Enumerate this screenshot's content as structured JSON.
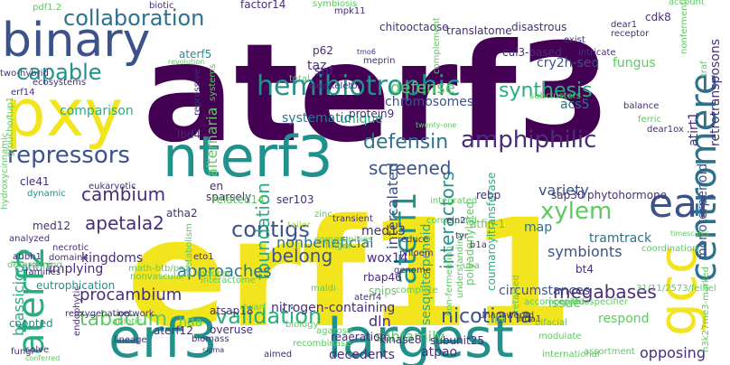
{
  "palette": {
    "dark_purple": "#440154",
    "purple": "#472d7b",
    "indigo": "#3b528b",
    "blue": "#2c728e",
    "teal": "#21918c",
    "green_teal": "#28ae80",
    "green": "#5ec962",
    "lime": "#addc30",
    "yellow": "#f2e51d"
  },
  "words": [
    {
      "text": "aterf3",
      "color": "#440154"
    },
    {
      "text": "erf11",
      "color": "#f2e51d"
    },
    {
      "text": "pxy",
      "color": "#f2e51d"
    },
    {
      "text": "binary",
      "color": "#3b528b"
    },
    {
      "text": "nterf3",
      "color": "#21918c"
    },
    {
      "text": "erf3",
      "color": "#21918c"
    },
    {
      "text": "largest",
      "color": "#21918c"
    },
    {
      "text": "gcc",
      "color": "#f2e51d"
    },
    {
      "text": "centromere",
      "color": "#2c728e"
    },
    {
      "text": "aterf2",
      "color": "#28ae80"
    },
    {
      "text": "aterf1",
      "color": "#21918c"
    },
    {
      "text": "ear",
      "color": "#3b528b"
    },
    {
      "text": "hemibiotrophic",
      "color": "#21918c"
    },
    {
      "text": "collaboration",
      "color": "#2c728e"
    },
    {
      "text": "capable",
      "color": "#21918c"
    },
    {
      "text": "repressors",
      "color": "#3b528b"
    },
    {
      "text": "defensin",
      "color": "#2c728e"
    },
    {
      "text": "amphiphilic",
      "color": "#472d7b"
    },
    {
      "text": "validation",
      "color": "#28ae80"
    },
    {
      "text": "tabacum",
      "color": "#5ec962"
    },
    {
      "text": "nicotiana",
      "color": "#3b528b"
    },
    {
      "text": "contigs",
      "color": "#3b528b"
    },
    {
      "text": "xylem",
      "color": "#5ec962"
    },
    {
      "text": "megabases",
      "color": "#472d7b"
    },
    {
      "text": "foundation",
      "color": "#28ae80"
    },
    {
      "text": "intercalated",
      "color": "#3b528b"
    },
    {
      "text": "interactors",
      "color": "#21918c"
    },
    {
      "text": "brassicicola",
      "color": "#28ae80"
    },
    {
      "text": "synthesis",
      "color": "#28ae80"
    },
    {
      "text": "screened",
      "color": "#3b528b"
    },
    {
      "text": "cambium",
      "color": "#472d7b"
    },
    {
      "text": "apetala2",
      "color": "#472d7b"
    },
    {
      "text": "procambium",
      "color": "#472d7b"
    },
    {
      "text": "alternaria",
      "color": "#5ec962"
    },
    {
      "text": "defense",
      "color": "#5ec962"
    },
    {
      "text": "chromosomes",
      "color": "#3b528b"
    },
    {
      "text": "belong",
      "color": "#3b528b"
    },
    {
      "text": "nonbeneficial",
      "color": "#2c728e"
    },
    {
      "text": "approaches",
      "color": "#2c728e"
    },
    {
      "text": "variety",
      "color": "#3b528b"
    },
    {
      "text": "symbionts",
      "color": "#3b528b"
    },
    {
      "text": "circumstances",
      "color": "#3b528b"
    },
    {
      "text": "nitrogen-containing",
      "color": "#472d7b"
    },
    {
      "text": "sesquiterpenoid",
      "color": "#28ae80"
    },
    {
      "text": "subfamily",
      "color": "#5ec962"
    },
    {
      "text": "monoterpenoid",
      "color": "#3b528b"
    },
    {
      "text": "cry2h-seq",
      "color": "#3b528b"
    },
    {
      "text": "kingdoms",
      "color": "#472d7b"
    },
    {
      "text": "fungus",
      "color": "#5ec962"
    },
    {
      "text": "atpao",
      "color": "#472d7b"
    },
    {
      "text": "decedents",
      "color": "#472d7b"
    },
    {
      "text": "opposing",
      "color": "#472d7b"
    },
    {
      "text": "coopted",
      "color": "#21918c"
    },
    {
      "text": "acs5",
      "color": "#2c728e"
    },
    {
      "text": "unique",
      "color": "#28ae80"
    },
    {
      "text": "systematic",
      "color": "#2c728e"
    },
    {
      "text": "comparison",
      "color": "#28ae80"
    },
    {
      "text": "implying",
      "color": "#472d7b"
    },
    {
      "text": "eutrophication",
      "color": "#21918c"
    },
    {
      "text": "atsap18",
      "color": "#472d7b"
    },
    {
      "text": "reaeration",
      "color": "#472d7b"
    },
    {
      "text": "med13",
      "color": "#472d7b"
    },
    {
      "text": "wox14",
      "color": "#472d7b"
    },
    {
      "text": "hda",
      "color": "#5ec962"
    },
    {
      "text": "issue",
      "color": "#5ec962"
    },
    {
      "text": "respond",
      "color": "#5ec962"
    },
    {
      "text": "tramtrack",
      "color": "#2c728e"
    },
    {
      "text": "med12",
      "color": "#472d7b"
    },
    {
      "text": "atha2",
      "color": "#472d7b"
    },
    {
      "text": "cle41",
      "color": "#472d7b"
    },
    {
      "text": "dln",
      "color": "#472d7b"
    },
    {
      "text": "snips",
      "color": "#5ec962"
    },
    {
      "text": "rbap46",
      "color": "#472d7b"
    },
    {
      "text": "map",
      "color": "#2c728e"
    },
    {
      "text": "bt4",
      "color": "#472d7b"
    },
    {
      "text": "rebp",
      "color": "#472d7b"
    },
    {
      "text": "sap30",
      "color": "#472d7b"
    },
    {
      "text": "phytohormone",
      "color": "#472d7b"
    },
    {
      "text": "atitr1",
      "color": "#21918c"
    },
    {
      "text": "overuse",
      "color": "#472d7b"
    },
    {
      "text": "aterf12",
      "color": "#472d7b"
    },
    {
      "text": "kinase8",
      "color": "#472d7b"
    },
    {
      "text": "subunit25",
      "color": "#472d7b"
    },
    {
      "text": "atfin-1",
      "color": "#5ec962"
    },
    {
      "text": "polyadenylated",
      "color": "#5ec962"
    },
    {
      "text": "coumaroyltransferase",
      "color": "#28ae80"
    },
    {
      "text": "transient",
      "color": "#472d7b"
    },
    {
      "text": "sparsely",
      "color": "#472d7b"
    },
    {
      "text": "en",
      "color": "#472d7b"
    },
    {
      "text": "related14",
      "color": "#5ec962"
    },
    {
      "text": "ser103",
      "color": "#472d7b"
    },
    {
      "text": "lbd4",
      "color": "#472d7b"
    },
    {
      "text": "protein9",
      "color": "#472d7b"
    },
    {
      "text": "cul3-based",
      "color": "#472d7b"
    },
    {
      "text": "translatome",
      "color": "#472d7b"
    },
    {
      "text": "disastrous",
      "color": "#472d7b"
    },
    {
      "text": "chitooctaose",
      "color": "#472d7b"
    },
    {
      "text": "taz",
      "color": "#472d7b"
    },
    {
      "text": "snf",
      "color": "#472d7b"
    },
    {
      "text": "p62",
      "color": "#472d7b"
    },
    {
      "text": "aterf5",
      "color": "#21918c"
    },
    {
      "text": "cdk8",
      "color": "#472d7b"
    },
    {
      "text": "subclusters",
      "color": "#5ec962"
    },
    {
      "text": "integrated",
      "color": "#5ec962"
    },
    {
      "text": "correspond",
      "color": "#5ec962"
    },
    {
      "text": "dynamic",
      "color": "#21918c"
    },
    {
      "text": "eukaryotic",
      "color": "#472d7b"
    },
    {
      "text": "tailor",
      "color": "#addc30"
    },
    {
      "text": "zinc",
      "color": "#5ec962"
    },
    {
      "text": "eto1",
      "color": "#472d7b"
    },
    {
      "text": "metabolism",
      "color": "#5ec962"
    },
    {
      "text": "network",
      "color": "#472d7b"
    },
    {
      "text": "abiotic",
      "color": "#5ec962"
    },
    {
      "text": "lineage",
      "color": "#472d7b"
    },
    {
      "text": "biomass",
      "color": "#472d7b"
    },
    {
      "text": "sigma",
      "color": "#472d7b"
    },
    {
      "text": "fungi",
      "color": "#472d7b"
    },
    {
      "text": "solve",
      "color": "#472d7b"
    },
    {
      "text": "conferred",
      "color": "#5ec962"
    },
    {
      "text": "endophytic",
      "color": "#472d7b"
    },
    {
      "text": "aimed",
      "color": "#472d7b"
    },
    {
      "text": "recombinase",
      "color": "#5ec962"
    },
    {
      "text": "hda1",
      "color": "#472d7b"
    },
    {
      "text": "modulate",
      "color": "#5ec962"
    },
    {
      "text": "assortment",
      "color": "#5ec962"
    },
    {
      "text": "international",
      "color": "#5ec962"
    },
    {
      "text": "unanswered",
      "color": "#472d7b"
    },
    {
      "text": "accompanied",
      "color": "#5ec962"
    },
    {
      "text": "epithiospecifier",
      "color": "#5ec962"
    },
    {
      "text": "h3k27me3-marked",
      "color": "#5ec962"
    },
    {
      "text": "31/11/2573/felfiel",
      "color": "#5ec962"
    },
    {
      "text": "timescales",
      "color": "#5ec962"
    },
    {
      "text": "coordination",
      "color": "#5ec962"
    },
    {
      "text": "b1a",
      "color": "#472d7b"
    },
    {
      "text": "reduce",
      "color": "#472d7b"
    },
    {
      "text": "phloem",
      "color": "#472d7b"
    },
    {
      "text": "finger",
      "color": "#5ec962"
    },
    {
      "text": "communities",
      "color": "#5ec962"
    },
    {
      "text": "genome",
      "color": "#472d7b"
    },
    {
      "text": "complete",
      "color": "#5ec962"
    },
    {
      "text": "aterf4",
      "color": "#472d7b"
    },
    {
      "text": "understanding",
      "color": "#5ec962"
    },
    {
      "text": "non-fermenting",
      "color": "#5ec962"
    },
    {
      "text": "retained",
      "color": "#5ec962"
    },
    {
      "text": "fpa",
      "color": "#5ec962"
    },
    {
      "text": "bifacial",
      "color": "#5ec962"
    },
    {
      "text": "math-btb/poz",
      "color": "#5ec962"
    },
    {
      "text": "nonvascular",
      "color": "#5ec962"
    },
    {
      "text": "determining",
      "color": "#5ec962"
    },
    {
      "text": "hydroxycinnamic",
      "color": "#5ec962"
    },
    {
      "text": "atibh1",
      "color": "#472d7b"
    },
    {
      "text": "necrotic",
      "color": "#472d7b"
    },
    {
      "text": "domain4",
      "color": "#472d7b"
    },
    {
      "text": "families",
      "color": "#472d7b"
    },
    {
      "text": "reoxygenation",
      "color": "#472d7b"
    },
    {
      "text": "interactome",
      "color": "#5ec962"
    },
    {
      "text": "inducer",
      "color": "#5ec962"
    },
    {
      "text": "maldi",
      "color": "#5ec962"
    },
    {
      "text": "dwarf",
      "color": "#5ec962"
    },
    {
      "text": "biology",
      "color": "#5ec962"
    },
    {
      "text": "agarose",
      "color": "#5ec962"
    },
    {
      "text": "ein2",
      "color": "#472d7b"
    },
    {
      "text": "tyr",
      "color": "#472d7b"
    },
    {
      "text": "uba",
      "color": "#5ec962"
    },
    {
      "text": "analyzed",
      "color": "#472d7b"
    },
    {
      "text": "exist",
      "color": "#472d7b"
    },
    {
      "text": "intricate",
      "color": "#472d7b"
    },
    {
      "text": "receptor",
      "color": "#472d7b"
    },
    {
      "text": "balance",
      "color": "#472d7b"
    },
    {
      "text": "ferric",
      "color": "#5ec962"
    },
    {
      "text": "dear1ox",
      "color": "#472d7b"
    },
    {
      "text": "twenty-one",
      "color": "#5ec962"
    },
    {
      "text": "exoskeleton",
      "color": "#472d7b"
    },
    {
      "text": "total",
      "color": "#5ec962"
    },
    {
      "text": "tmo6",
      "color": "#472d7b"
    },
    {
      "text": "systems",
      "color": "#5ec962"
    },
    {
      "text": "repressive",
      "color": "#472d7b"
    },
    {
      "text": "biotic",
      "color": "#472d7b"
    },
    {
      "text": "factor14",
      "color": "#472d7b"
    },
    {
      "text": "symbiosis",
      "color": "#5ec962"
    },
    {
      "text": "pdf1.2",
      "color": "#5ec962"
    },
    {
      "text": "account",
      "color": "#5ec962"
    },
    {
      "text": "dear1",
      "color": "#472d7b"
    },
    {
      "text": "two-hybrid",
      "color": "#472d7b"
    },
    {
      "text": "ecosystems",
      "color": "#472d7b"
    },
    {
      "text": "erf14",
      "color": "#472d7b"
    },
    {
      "text": "revolution",
      "color": "#5ec962"
    },
    {
      "text": "meprin",
      "color": "#472d7b"
    },
    {
      "text": "mpk11",
      "color": "#472d7b"
    },
    {
      "text": "complement",
      "color": "#5ec962"
    },
    {
      "text": "groucho/tup1",
      "color": "#5ec962"
    },
    {
      "text": "atirt1",
      "color": "#472d7b"
    },
    {
      "text": "retrotransposons",
      "color": "#472d7b"
    },
    {
      "text": "nonfermenting",
      "color": "#5ec962"
    },
    {
      "text": "traf",
      "color": "#5ec962"
    }
  ]
}
